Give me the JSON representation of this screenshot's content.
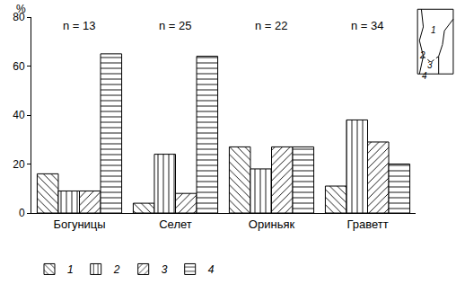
{
  "chart_data": {
    "type": "bar",
    "y_label": "%",
    "categories": [
      "Богуницы",
      "Селет",
      "Ориньяк",
      "Граветт"
    ],
    "annotations": [
      "n = 13",
      "n = 25",
      "n = 22",
      "n = 34"
    ],
    "series": [
      {
        "name": "1",
        "color": "#ffffff",
        "marker": "diagonal_down",
        "values": [
          16,
          4,
          27,
          11
        ]
      },
      {
        "name": "2",
        "color": "#ffffff",
        "marker": "vertical",
        "values": [
          9,
          24,
          18,
          38
        ]
      },
      {
        "name": "3",
        "color": "#ffffff",
        "marker": "diagonal_up",
        "values": [
          9,
          8,
          27,
          29
        ]
      },
      {
        "name": "4",
        "color": "#ffffff",
        "marker": "horizontal",
        "values": [
          65,
          64,
          27,
          20
        ]
      }
    ],
    "inset": {
      "labels": [
        "1",
        "2",
        "3",
        "4"
      ]
    },
    "ylim": [
      0,
      80
    ],
    "yticks": [
      0,
      20,
      40,
      60,
      80
    ],
    "grid": false,
    "legend": "bottom"
  }
}
